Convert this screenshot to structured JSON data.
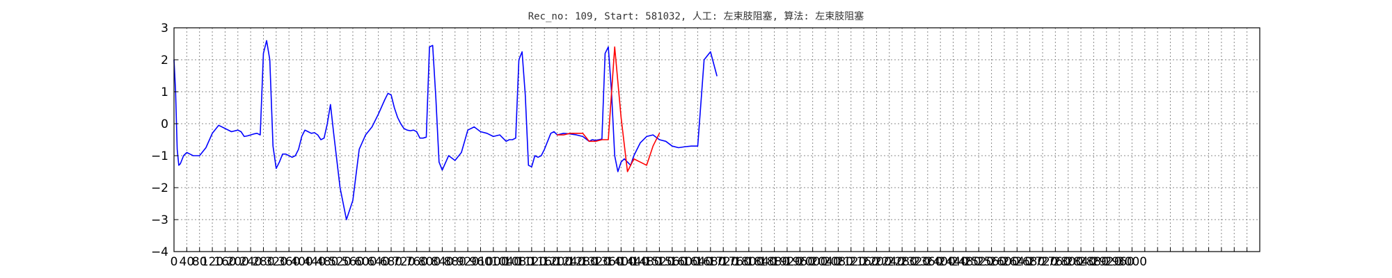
{
  "chart_data": {
    "type": "line",
    "title": "Rec_no: 109, Start: 581032, 人工: 左束肢阻塞, 算法: 左束肢阻塞",
    "xlabel": "",
    "ylabel": "",
    "xlim": [
      0,
      3400
    ],
    "ylim": [
      -4,
      3
    ],
    "grid": true,
    "y_ticks": [
      -4,
      -3,
      -2,
      -1,
      0,
      1,
      2,
      3
    ],
    "x_ticks": [
      0,
      40,
      80,
      120,
      160,
      200,
      240,
      280,
      320,
      360,
      400,
      440,
      480,
      520,
      560,
      600,
      640,
      680,
      720,
      760,
      800,
      840,
      880,
      920,
      960,
      1000,
      1040,
      1080,
      1120,
      1160,
      1200,
      1240,
      1280,
      1320,
      1360,
      1400,
      1440,
      1480,
      1520,
      1560,
      1600,
      1640,
      1680,
      1720,
      1760,
      1800,
      1840,
      1880,
      1920,
      1960,
      2000,
      2040,
      2080,
      2120,
      2160,
      2200,
      2240,
      2280,
      2320,
      2360,
      2400,
      2440,
      2480,
      2520,
      2560,
      2600,
      2640,
      2680,
      2720,
      2760,
      2800,
      2840,
      2880,
      2920,
      2960,
      3000,
      3040,
      3080,
      3120,
      3160,
      3200,
      3240,
      3280,
      3320,
      3360,
      3400
    ],
    "x_tick_labels": [
      "0",
      "40",
      "80",
      "120",
      "160",
      "200",
      "240",
      "280",
      "320",
      "360",
      "400",
      "440",
      "480",
      "520",
      "560",
      "600",
      "640",
      "680",
      "720",
      "760",
      "800",
      "840",
      "880",
      "920",
      "960",
      "1000",
      "1040",
      "1080",
      "1120",
      "1160",
      "1200",
      "1240",
      "1280",
      "1320",
      "1360",
      "1400",
      "1440",
      "1480",
      "1520",
      "1560",
      "1600",
      "1640",
      "1680",
      "1720",
      "1760",
      "1800",
      "1840",
      "1880",
      "1920",
      "1960",
      "2000",
      "2040",
      "2080",
      "2120",
      "2160",
      "2200",
      "2240",
      "2280",
      "2320",
      "2360",
      "2400",
      "2440",
      "2480",
      "2520",
      "2560",
      "2600",
      "2640",
      "2680",
      "2720",
      "2760",
      "2800",
      "2840",
      "2880",
      "2920",
      "2960",
      "3000",
      "",
      "",
      "",
      "",
      "",
      "",
      "",
      "",
      "",
      ""
    ],
    "series": [
      {
        "color": "#0000ff",
        "x": [
          0,
          5,
          10,
          15,
          20,
          30,
          40,
          50,
          60,
          80,
          100,
          120,
          140,
          160,
          180,
          200,
          210,
          220,
          230,
          240,
          250,
          260,
          270,
          280,
          290,
          300,
          310,
          320,
          330,
          340,
          350,
          360,
          370,
          380,
          390,
          400,
          410,
          420,
          430,
          440,
          450,
          460,
          470,
          480,
          490,
          500,
          520,
          540,
          560,
          580,
          600,
          620,
          640,
          660,
          670,
          680,
          690,
          700,
          710,
          720,
          730,
          740,
          750,
          760,
          770,
          780,
          790,
          800,
          810,
          820,
          830,
          840,
          860,
          880,
          900,
          920,
          940,
          960,
          980,
          1000,
          1020,
          1040,
          1050,
          1060,
          1070,
          1080,
          1090,
          1100,
          1110,
          1120,
          1130,
          1140,
          1150,
          1160,
          1170,
          1180,
          1190,
          1200,
          1220,
          1240,
          1260,
          1280,
          1300,
          1310,
          1320,
          1330,
          1340,
          1350,
          1360,
          1370,
          1380,
          1390,
          1400,
          1410,
          1420,
          1430,
          1440,
          1460,
          1480,
          1500,
          1520,
          1540,
          1560,
          1580,
          1600,
          1620,
          1640,
          1660,
          1680,
          1700
        ],
        "y": [
          2.0,
          1.0,
          -0.8,
          -1.3,
          -1.25,
          -1.0,
          -0.9,
          -0.95,
          -1.0,
          -1.0,
          -0.75,
          -0.3,
          -0.05,
          -0.15,
          -0.25,
          -0.2,
          -0.25,
          -0.4,
          -0.38,
          -0.35,
          -0.32,
          -0.3,
          -0.35,
          2.2,
          2.6,
          2.0,
          -0.7,
          -1.4,
          -1.2,
          -0.95,
          -0.95,
          -1.0,
          -1.05,
          -1.0,
          -0.8,
          -0.4,
          -0.2,
          -0.25,
          -0.3,
          -0.28,
          -0.35,
          -0.5,
          -0.45,
          0.0,
          0.6,
          -0.3,
          -2.0,
          -3.0,
          -2.4,
          -0.8,
          -0.35,
          -0.1,
          0.3,
          0.75,
          0.95,
          0.9,
          0.5,
          0.2,
          0.0,
          -0.15,
          -0.2,
          -0.22,
          -0.2,
          -0.25,
          -0.45,
          -0.45,
          -0.42,
          2.4,
          2.45,
          0.8,
          -1.2,
          -1.45,
          -1.0,
          -1.15,
          -0.9,
          -0.2,
          -0.1,
          -0.25,
          -0.3,
          -0.4,
          -0.35,
          -0.55,
          -0.5,
          -0.5,
          -0.45,
          2.0,
          2.25,
          0.9,
          -1.3,
          -1.35,
          -1.0,
          -1.05,
          -1.0,
          -0.8,
          -0.55,
          -0.3,
          -0.25,
          -0.35,
          -0.3,
          -0.32,
          -0.35,
          -0.4,
          -0.55,
          -0.5,
          -0.52,
          -0.5,
          -0.48,
          2.2,
          2.4,
          1.0,
          -1.0,
          -1.5,
          -1.2,
          -1.1,
          -1.2,
          -1.3,
          -1.0,
          -0.6,
          -0.4,
          -0.35,
          -0.5,
          -0.55,
          -0.7,
          -0.75,
          -0.72,
          -0.7,
          -0.7,
          2.0,
          2.25,
          1.5
        ]
      },
      {
        "color": "#ff0000",
        "x": [
          1200,
          1220,
          1240,
          1260,
          1280,
          1300,
          1320,
          1340,
          1360,
          1380,
          1400,
          1420,
          1440,
          1460,
          1480,
          1500,
          1520
        ],
        "y": [
          -0.35,
          -0.35,
          -0.3,
          -0.3,
          -0.3,
          -0.55,
          -0.55,
          -0.5,
          -0.5,
          2.4,
          0.2,
          -1.5,
          -1.1,
          -1.2,
          -1.3,
          -0.7,
          -0.3
        ]
      }
    ]
  }
}
